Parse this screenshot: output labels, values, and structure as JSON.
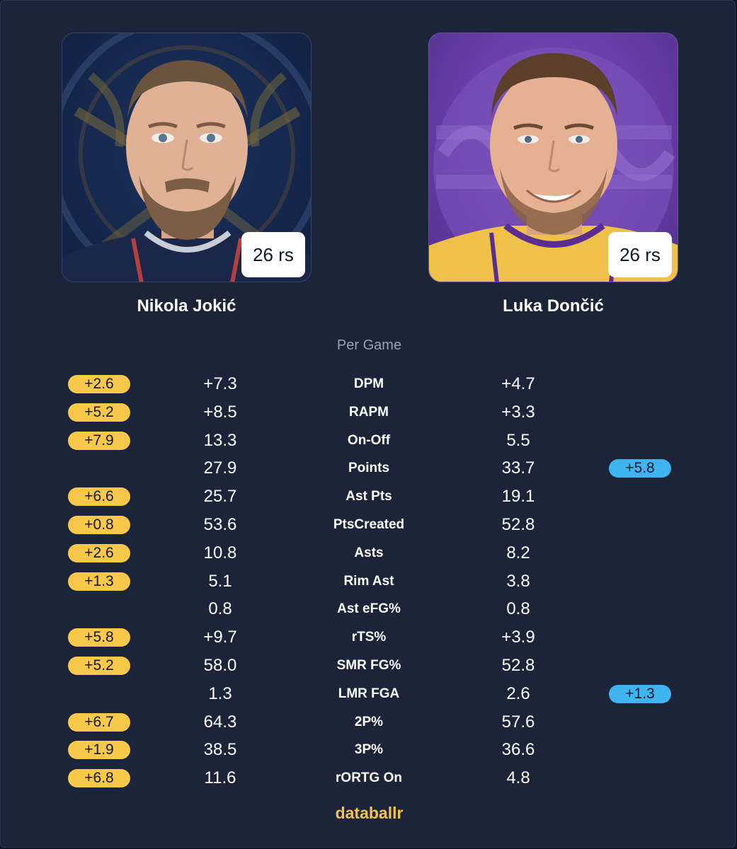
{
  "players": {
    "left": {
      "name": "Nikola Jokić",
      "badge": "26 rs"
    },
    "right": {
      "name": "Luka Dončić",
      "badge": "26 rs"
    }
  },
  "section_title": "Per Game",
  "colors": {
    "left_advantage": "#f7c84a",
    "right_advantage": "#3fb4ef",
    "brand": "#f5c34b"
  },
  "rows": [
    {
      "metric": "DPM",
      "left": "+7.3",
      "right": "+4.7",
      "left_diff": "+2.6",
      "right_diff": ""
    },
    {
      "metric": "RAPM",
      "left": "+8.5",
      "right": "+3.3",
      "left_diff": "+5.2",
      "right_diff": ""
    },
    {
      "metric": "On-Off",
      "left": "13.3",
      "right": "5.5",
      "left_diff": "+7.9",
      "right_diff": ""
    },
    {
      "metric": "Points",
      "left": "27.9",
      "right": "33.7",
      "left_diff": "",
      "right_diff": "+5.8"
    },
    {
      "metric": "Ast Pts",
      "left": "25.7",
      "right": "19.1",
      "left_diff": "+6.6",
      "right_diff": ""
    },
    {
      "metric": "PtsCreated",
      "left": "53.6",
      "right": "52.8",
      "left_diff": "+0.8",
      "right_diff": ""
    },
    {
      "metric": "Asts",
      "left": "10.8",
      "right": "8.2",
      "left_diff": "+2.6",
      "right_diff": ""
    },
    {
      "metric": "Rim Ast",
      "left": "5.1",
      "right": "3.8",
      "left_diff": "+1.3",
      "right_diff": ""
    },
    {
      "metric": "Ast eFG%",
      "left": "0.8",
      "right": "0.8",
      "left_diff": "",
      "right_diff": ""
    },
    {
      "metric": "rTS%",
      "left": "+9.7",
      "right": "+3.9",
      "left_diff": "+5.8",
      "right_diff": ""
    },
    {
      "metric": "SMR FG%",
      "left": "58.0",
      "right": "52.8",
      "left_diff": "+5.2",
      "right_diff": ""
    },
    {
      "metric": "LMR FGA",
      "left": "1.3",
      "right": "2.6",
      "left_diff": "",
      "right_diff": "+1.3"
    },
    {
      "metric": "2P%",
      "left": "64.3",
      "right": "57.6",
      "left_diff": "+6.7",
      "right_diff": ""
    },
    {
      "metric": "3P%",
      "left": "38.5",
      "right": "36.6",
      "left_diff": "+1.9",
      "right_diff": ""
    },
    {
      "metric": "rORTG On",
      "left": "11.6",
      "right": "4.8",
      "left_diff": "+6.8",
      "right_diff": ""
    }
  ],
  "brand": "databallr"
}
